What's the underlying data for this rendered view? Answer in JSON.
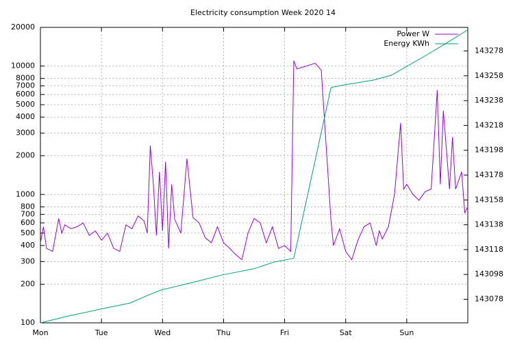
{
  "chart_data": {
    "type": "line",
    "title": "Electricity consumption Week 2020 14",
    "ylog": true,
    "grid": true,
    "legend": "top-right",
    "xlim": [
      0,
      7
    ],
    "xticks": [
      {
        "value": 0,
        "label": "Mon"
      },
      {
        "value": 1,
        "label": "Tue"
      },
      {
        "value": 2,
        "label": "Wed"
      },
      {
        "value": 3,
        "label": "Thu"
      },
      {
        "value": 4,
        "label": "Fri"
      },
      {
        "value": 5,
        "label": "Sat"
      },
      {
        "value": 6,
        "label": "Sun"
      }
    ],
    "ylim": [
      100,
      20000
    ],
    "yticks": [
      100,
      200,
      300,
      400,
      500,
      600,
      700,
      800,
      1000,
      2000,
      3000,
      4000,
      5000,
      6000,
      7000,
      8000,
      10000,
      20000
    ],
    "y2lim": [
      143059,
      143297
    ],
    "y2ticks": [
      143078,
      143098,
      143118,
      143138,
      143158,
      143178,
      143198,
      143218,
      143238,
      143258,
      143278
    ],
    "series": [
      {
        "name": "Power W",
        "color": "#9400d3",
        "x": [
          0,
          0.05,
          0.1,
          0.2,
          0.3,
          0.35,
          0.4,
          0.5,
          0.6,
          0.7,
          0.8,
          0.9,
          1.0,
          1.1,
          1.2,
          1.3,
          1.4,
          1.5,
          1.6,
          1.7,
          1.75,
          1.8,
          1.85,
          1.9,
          1.95,
          2.0,
          2.05,
          2.1,
          2.15,
          2.2,
          2.3,
          2.4,
          2.5,
          2.6,
          2.7,
          2.8,
          2.9,
          3.0,
          3.1,
          3.2,
          3.3,
          3.4,
          3.5,
          3.6,
          3.7,
          3.8,
          3.9,
          4.0,
          4.1,
          4.15,
          4.2,
          4.5,
          4.6,
          4.76,
          4.8,
          4.9,
          5.0,
          5.1,
          5.2,
          5.3,
          5.4,
          5.5,
          5.55,
          5.6,
          5.7,
          5.8,
          5.9,
          5.95,
          6.0,
          6.1,
          6.2,
          6.3,
          6.4,
          6.5,
          6.55,
          6.6,
          6.7,
          6.75,
          6.8,
          6.9,
          6.95,
          7.0
        ],
        "values": [
          420,
          560,
          380,
          360,
          650,
          500,
          580,
          540,
          560,
          600,
          480,
          520,
          440,
          500,
          380,
          360,
          580,
          540,
          680,
          620,
          500,
          2400,
          1200,
          480,
          1500,
          520,
          1800,
          380,
          1200,
          640,
          500,
          1900,
          660,
          600,
          460,
          420,
          560,
          420,
          380,
          340,
          310,
          500,
          650,
          600,
          420,
          560,
          380,
          400,
          360,
          11000,
          9500,
          10500,
          9300,
          620,
          400,
          540,
          360,
          310,
          440,
          560,
          600,
          400,
          520,
          450,
          560,
          1000,
          3600,
          1100,
          1200,
          1000,
          900,
          1050,
          1100,
          6500,
          1200,
          4500,
          1100,
          2800,
          1100,
          1500,
          720,
          800
        ]
      },
      {
        "name": "Energy KWh",
        "color": "#009e73",
        "axis": "y2",
        "x": [
          0,
          0.46,
          0.98,
          1.47,
          1.75,
          1.98,
          2.49,
          2.98,
          3.49,
          3.83,
          4.15,
          4.76,
          4.98,
          5.46,
          5.75,
          5.98,
          6.3,
          6.64,
          7.0
        ],
        "values": [
          143059,
          143064.5,
          143070,
          143075,
          143081,
          143085.5,
          143091.5,
          143097.6,
          143102.5,
          143108,
          143111,
          143248.5,
          143250.7,
          143254.6,
          143258.5,
          143265,
          143274,
          143284,
          143295
        ]
      }
    ]
  }
}
